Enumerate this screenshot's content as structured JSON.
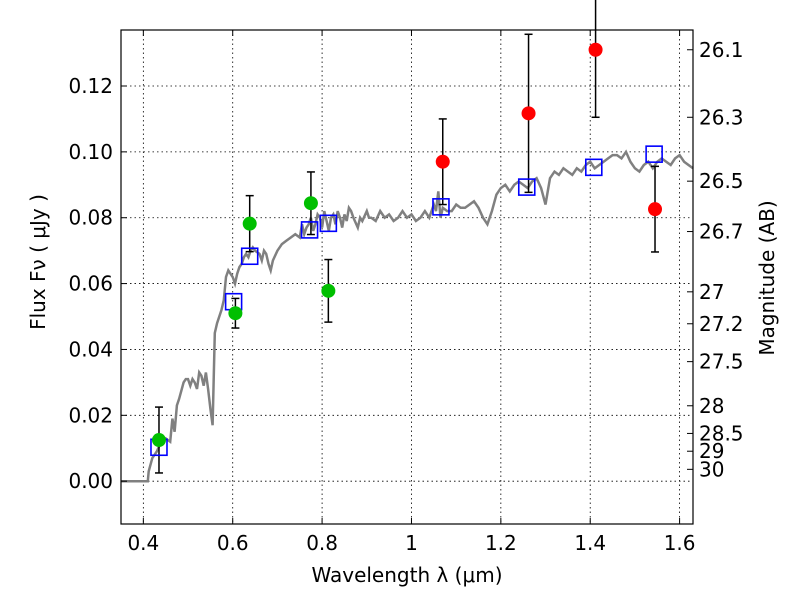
{
  "chart_data": {
    "type": "scatter",
    "xlabel": "Wavelength  λ (μm)",
    "ylabel": "Flux  Fν  ( μJy )",
    "y2label": "Magnitude (AB)",
    "xlim": [
      0.35,
      1.63
    ],
    "ylim": [
      -0.013,
      0.137
    ],
    "grid": true,
    "x_ticks": [
      0.4,
      0.6,
      0.8,
      1.0,
      1.2,
      1.4,
      1.6
    ],
    "x_tick_labels": [
      "0.4",
      "0.6",
      "0.8",
      "1",
      "1.2",
      "1.4",
      "1.6"
    ],
    "y_ticks": [
      0.0,
      0.02,
      0.04,
      0.06,
      0.08,
      0.1,
      0.12
    ],
    "y_tick_labels": [
      "0.00",
      "0.02",
      "0.04",
      "0.06",
      "0.08",
      "0.10",
      "0.12"
    ],
    "y2_ticks": [
      {
        "label": "26.1",
        "flux": 0.131
      },
      {
        "label": "26.3",
        "flux": 0.1105
      },
      {
        "label": "26.5",
        "flux": 0.0911
      },
      {
        "label": "26.7",
        "flux": 0.0758
      },
      {
        "label": "27",
        "flux": 0.0575
      },
      {
        "label": "27.2",
        "flux": 0.0478
      },
      {
        "label": "27.5",
        "flux": 0.0363
      },
      {
        "label": "28",
        "flux": 0.0229
      },
      {
        "label": "28.5",
        "flux": 0.0145
      },
      {
        "label": "29",
        "flux": 0.0091
      },
      {
        "label": "30",
        "flux": 0.0036
      }
    ],
    "model_spectrum": {
      "color": "#808080",
      "points": [
        [
          0.35,
          0.0
        ],
        [
          0.39,
          0.0
        ],
        [
          0.41,
          0.0
        ],
        [
          0.412,
          0.003
        ],
        [
          0.42,
          0.007
        ],
        [
          0.43,
          0.009
        ],
        [
          0.44,
          0.012
        ],
        [
          0.45,
          0.013
        ],
        [
          0.46,
          0.012
        ],
        [
          0.465,
          0.019
        ],
        [
          0.47,
          0.015
        ],
        [
          0.475,
          0.023
        ],
        [
          0.48,
          0.025
        ],
        [
          0.49,
          0.03
        ],
        [
          0.495,
          0.031
        ],
        [
          0.5,
          0.031
        ],
        [
          0.505,
          0.029
        ],
        [
          0.51,
          0.031
        ],
        [
          0.515,
          0.03
        ],
        [
          0.52,
          0.028
        ],
        [
          0.525,
          0.033
        ],
        [
          0.53,
          0.032
        ],
        [
          0.535,
          0.029
        ],
        [
          0.54,
          0.033
        ],
        [
          0.545,
          0.028
        ],
        [
          0.55,
          0.022
        ],
        [
          0.555,
          0.017
        ],
        [
          0.56,
          0.045
        ],
        [
          0.565,
          0.048
        ],
        [
          0.57,
          0.05
        ],
        [
          0.575,
          0.052
        ],
        [
          0.58,
          0.055
        ],
        [
          0.585,
          0.062
        ],
        [
          0.59,
          0.064
        ],
        [
          0.595,
          0.063
        ],
        [
          0.6,
          0.062
        ],
        [
          0.605,
          0.06
        ],
        [
          0.61,
          0.063
        ],
        [
          0.615,
          0.065
        ],
        [
          0.62,
          0.066
        ],
        [
          0.625,
          0.068
        ],
        [
          0.63,
          0.069
        ],
        [
          0.635,
          0.068
        ],
        [
          0.64,
          0.07
        ],
        [
          0.645,
          0.071
        ],
        [
          0.65,
          0.07
        ],
        [
          0.66,
          0.069
        ],
        [
          0.665,
          0.067
        ],
        [
          0.67,
          0.07
        ],
        [
          0.675,
          0.069
        ],
        [
          0.68,
          0.066
        ],
        [
          0.685,
          0.064
        ],
        [
          0.69,
          0.067
        ],
        [
          0.7,
          0.07
        ],
        [
          0.71,
          0.072
        ],
        [
          0.72,
          0.073
        ],
        [
          0.73,
          0.074
        ],
        [
          0.74,
          0.075
        ],
        [
          0.75,
          0.074
        ],
        [
          0.755,
          0.078
        ],
        [
          0.76,
          0.075
        ],
        [
          0.765,
          0.077
        ],
        [
          0.77,
          0.078
        ],
        [
          0.775,
          0.08
        ],
        [
          0.78,
          0.076
        ],
        [
          0.785,
          0.078
        ],
        [
          0.79,
          0.081
        ],
        [
          0.795,
          0.08
        ],
        [
          0.8,
          0.077
        ],
        [
          0.805,
          0.082
        ],
        [
          0.81,
          0.079
        ],
        [
          0.815,
          0.076
        ],
        [
          0.82,
          0.08
        ],
        [
          0.825,
          0.081
        ],
        [
          0.83,
          0.078
        ],
        [
          0.835,
          0.082
        ],
        [
          0.84,
          0.08
        ],
        [
          0.845,
          0.077
        ],
        [
          0.85,
          0.081
        ],
        [
          0.855,
          0.079
        ],
        [
          0.86,
          0.083
        ],
        [
          0.865,
          0.082
        ],
        [
          0.87,
          0.08
        ],
        [
          0.88,
          0.077
        ],
        [
          0.885,
          0.08
        ],
        [
          0.89,
          0.079
        ],
        [
          0.9,
          0.082
        ],
        [
          0.905,
          0.08
        ],
        [
          0.91,
          0.08
        ],
        [
          0.92,
          0.079
        ],
        [
          0.93,
          0.082
        ],
        [
          0.94,
          0.08
        ],
        [
          0.95,
          0.081
        ],
        [
          0.96,
          0.079
        ],
        [
          0.97,
          0.08
        ],
        [
          0.98,
          0.082
        ],
        [
          0.99,
          0.08
        ],
        [
          1.0,
          0.081
        ],
        [
          1.01,
          0.079
        ],
        [
          1.02,
          0.08
        ],
        [
          1.03,
          0.082
        ],
        [
          1.04,
          0.08
        ],
        [
          1.05,
          0.084
        ],
        [
          1.055,
          0.082
        ],
        [
          1.06,
          0.088
        ],
        [
          1.065,
          0.08
        ],
        [
          1.07,
          0.083
        ],
        [
          1.08,
          0.082
        ],
        [
          1.09,
          0.082
        ],
        [
          1.1,
          0.084
        ],
        [
          1.11,
          0.083
        ],
        [
          1.12,
          0.083
        ],
        [
          1.13,
          0.084
        ],
        [
          1.14,
          0.085
        ],
        [
          1.15,
          0.083
        ],
        [
          1.16,
          0.08
        ],
        [
          1.17,
          0.078
        ],
        [
          1.18,
          0.082
        ],
        [
          1.19,
          0.087
        ],
        [
          1.2,
          0.089
        ],
        [
          1.21,
          0.09
        ],
        [
          1.22,
          0.088
        ],
        [
          1.23,
          0.09
        ],
        [
          1.24,
          0.091
        ],
        [
          1.25,
          0.09
        ],
        [
          1.26,
          0.089
        ],
        [
          1.27,
          0.091
        ],
        [
          1.28,
          0.092
        ],
        [
          1.29,
          0.089
        ],
        [
          1.3,
          0.084
        ],
        [
          1.31,
          0.092
        ],
        [
          1.32,
          0.094
        ],
        [
          1.33,
          0.093
        ],
        [
          1.34,
          0.095
        ],
        [
          1.35,
          0.094
        ],
        [
          1.36,
          0.093
        ],
        [
          1.37,
          0.095
        ],
        [
          1.38,
          0.094
        ],
        [
          1.39,
          0.096
        ],
        [
          1.4,
          0.097
        ],
        [
          1.41,
          0.095
        ],
        [
          1.42,
          0.096
        ],
        [
          1.43,
          0.097
        ],
        [
          1.44,
          0.098
        ],
        [
          1.45,
          0.099
        ],
        [
          1.46,
          0.099
        ],
        [
          1.47,
          0.098
        ],
        [
          1.48,
          0.1
        ],
        [
          1.49,
          0.097
        ],
        [
          1.5,
          0.095
        ],
        [
          1.51,
          0.094
        ],
        [
          1.52,
          0.096
        ],
        [
          1.53,
          0.097
        ],
        [
          1.54,
          0.095
        ],
        [
          1.55,
          0.097
        ],
        [
          1.56,
          0.098
        ],
        [
          1.57,
          0.097
        ],
        [
          1.58,
          0.096
        ],
        [
          1.59,
          0.098
        ],
        [
          1.6,
          0.099
        ],
        [
          1.61,
          0.097
        ],
        [
          1.62,
          0.096
        ],
        [
          1.63,
          0.095
        ]
      ]
    },
    "model_points": {
      "color": "#0000ff",
      "marker": "open-square",
      "points": [
        [
          0.435,
          0.0103
        ],
        [
          0.602,
          0.0545
        ],
        [
          0.638,
          0.0683
        ],
        [
          0.772,
          0.0763
        ],
        [
          0.814,
          0.0783
        ],
        [
          1.066,
          0.0833
        ],
        [
          1.258,
          0.0893
        ],
        [
          1.408,
          0.0953
        ],
        [
          1.543,
          0.0993
        ]
      ]
    },
    "observed_green": {
      "color": "#00bf00",
      "marker": "filled-circle",
      "points": [
        {
          "x": 0.435,
          "y": 0.0125,
          "err": 0.01
        },
        {
          "x": 0.606,
          "y": 0.051,
          "err": 0.0045
        },
        {
          "x": 0.638,
          "y": 0.0782,
          "err": 0.0085
        },
        {
          "x": 0.775,
          "y": 0.0844,
          "err": 0.0095
        },
        {
          "x": 0.814,
          "y": 0.0578,
          "err": 0.0095
        }
      ]
    },
    "observed_red": {
      "color": "#ff0000",
      "marker": "filled-circle",
      "points": [
        {
          "x": 1.07,
          "y": 0.097,
          "err": 0.013
        },
        {
          "x": 1.262,
          "y": 0.1117,
          "err": 0.024
        },
        {
          "x": 1.412,
          "y": 0.131,
          "err": 0.0205
        },
        {
          "x": 1.545,
          "y": 0.0826,
          "err": 0.013
        }
      ]
    }
  }
}
